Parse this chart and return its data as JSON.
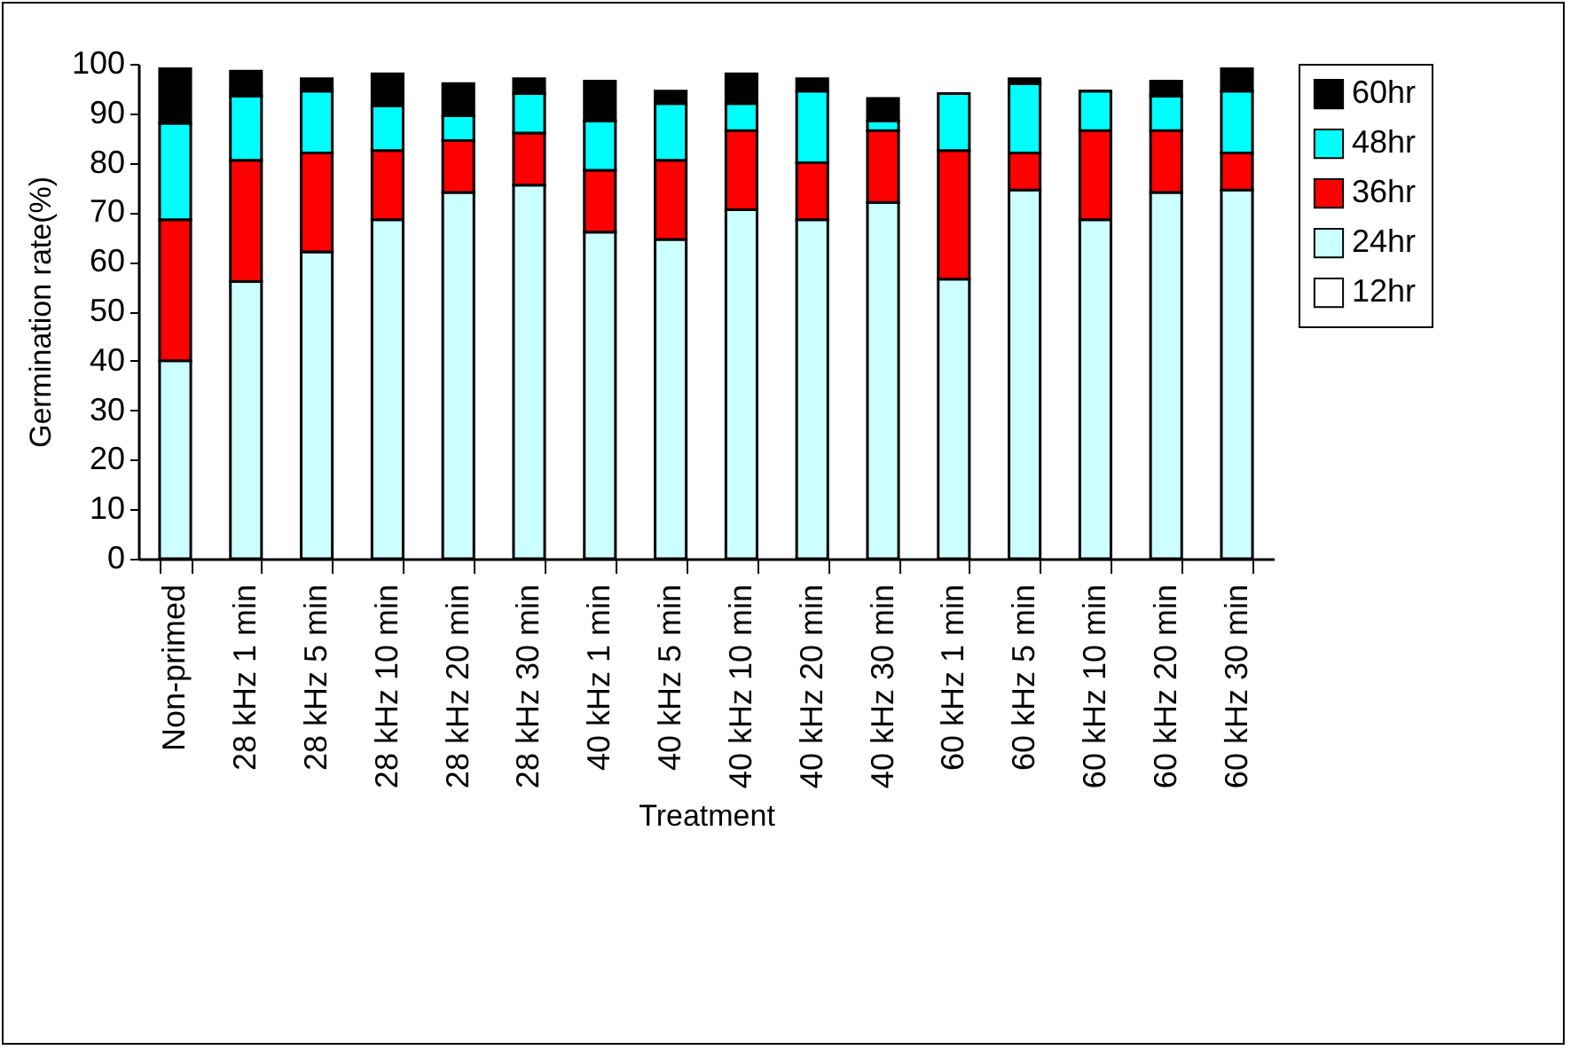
{
  "chart_data": {
    "type": "bar",
    "stacked": true,
    "xlabel": "Treatment",
    "ylabel": "Germination rate(%)",
    "ylim": [
      0,
      100
    ],
    "yticks": [
      0,
      10,
      20,
      30,
      40,
      50,
      60,
      70,
      80,
      90,
      100
    ],
    "grid": false,
    "legend": "right",
    "categories": [
      "Non-primed",
      "28 kHz 1 min",
      "28 kHz 5 min",
      "28 kHz 10 min",
      "28 kHz 20 min",
      "28 kHz 30 min",
      "40 kHz 1 min",
      "40 kHz 5 min",
      "40 kHz 10 min",
      "40 kHz 20 min",
      "40 kHz 30 min",
      "60 kHz 1 min",
      "60 kHz 5 min",
      "60 kHz 10 min",
      "60 kHz 20 min",
      "60 kHz 30 min"
    ],
    "series": [
      {
        "name": "12hr",
        "color": "#ffffff",
        "values": [
          0,
          0,
          0,
          0,
          0,
          0,
          0,
          0,
          0,
          0,
          0,
          0,
          0,
          0,
          0,
          0
        ]
      },
      {
        "name": "24hr",
        "color": "#ccffff",
        "values": [
          40,
          56,
          62,
          68.5,
          74,
          75.5,
          66,
          64.5,
          70.5,
          68.5,
          72,
          56.5,
          74.5,
          68.5,
          74,
          74.5
        ]
      },
      {
        "name": "36hr",
        "color": "#ff0000",
        "values": [
          28.5,
          24.5,
          20,
          14,
          10.5,
          10.5,
          12.5,
          16,
          16,
          11.5,
          14.5,
          26,
          7.5,
          18,
          12.5,
          7.5
        ]
      },
      {
        "name": "48hr",
        "color": "#00ffff",
        "values": [
          19.5,
          13,
          12.5,
          9,
          5,
          8,
          10,
          11.5,
          5.5,
          14.5,
          2,
          11.5,
          14,
          8,
          7,
          12.5
        ]
      },
      {
        "name": "60hr",
        "color": "#000000",
        "values": [
          11,
          5,
          2.5,
          6.5,
          6.5,
          3,
          8,
          2.5,
          6,
          2.5,
          4.5,
          0,
          1,
          0,
          3,
          4.5
        ]
      }
    ]
  }
}
